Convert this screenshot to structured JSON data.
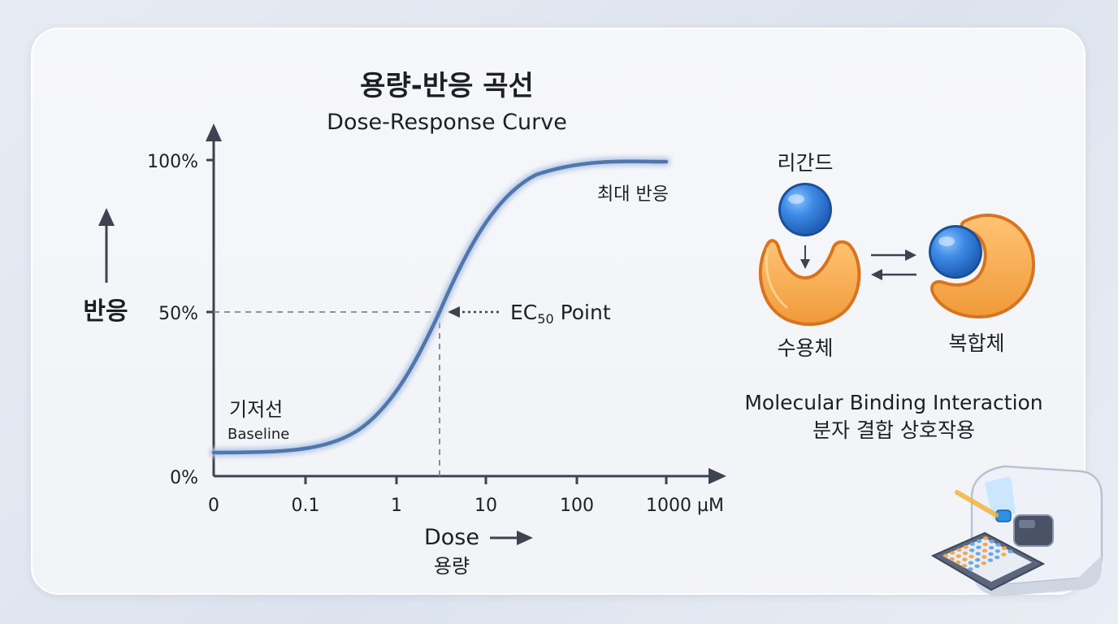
{
  "title_ko": "용량-반응 곡선",
  "title_en": "Dose-Response Curve",
  "y_axis": {
    "label": "반응",
    "ticks": [
      "100%",
      "50%",
      "0%"
    ]
  },
  "x_axis": {
    "label_en": "Dose",
    "label_ko": "용량",
    "ticks": [
      "0",
      "0.1",
      "1",
      "10",
      "100",
      "1000 µM"
    ]
  },
  "annotations": {
    "max_response": "최대 반응",
    "ec50_prefix": "EC",
    "ec50_sub": "50",
    "ec50_suffix": " Point",
    "baseline_ko": "기저선",
    "baseline_en": "Baseline"
  },
  "binding": {
    "ligand": "리간드",
    "receptor": "수용체",
    "complex": "복합체",
    "caption_en": "Molecular Binding Interaction",
    "caption_ko": "분자 결합 상호작용"
  },
  "colors": {
    "curve": "#4f77ad",
    "axis": "#3d4350",
    "receptor": "#f29a3c",
    "ligand": "#2f77d6"
  }
}
